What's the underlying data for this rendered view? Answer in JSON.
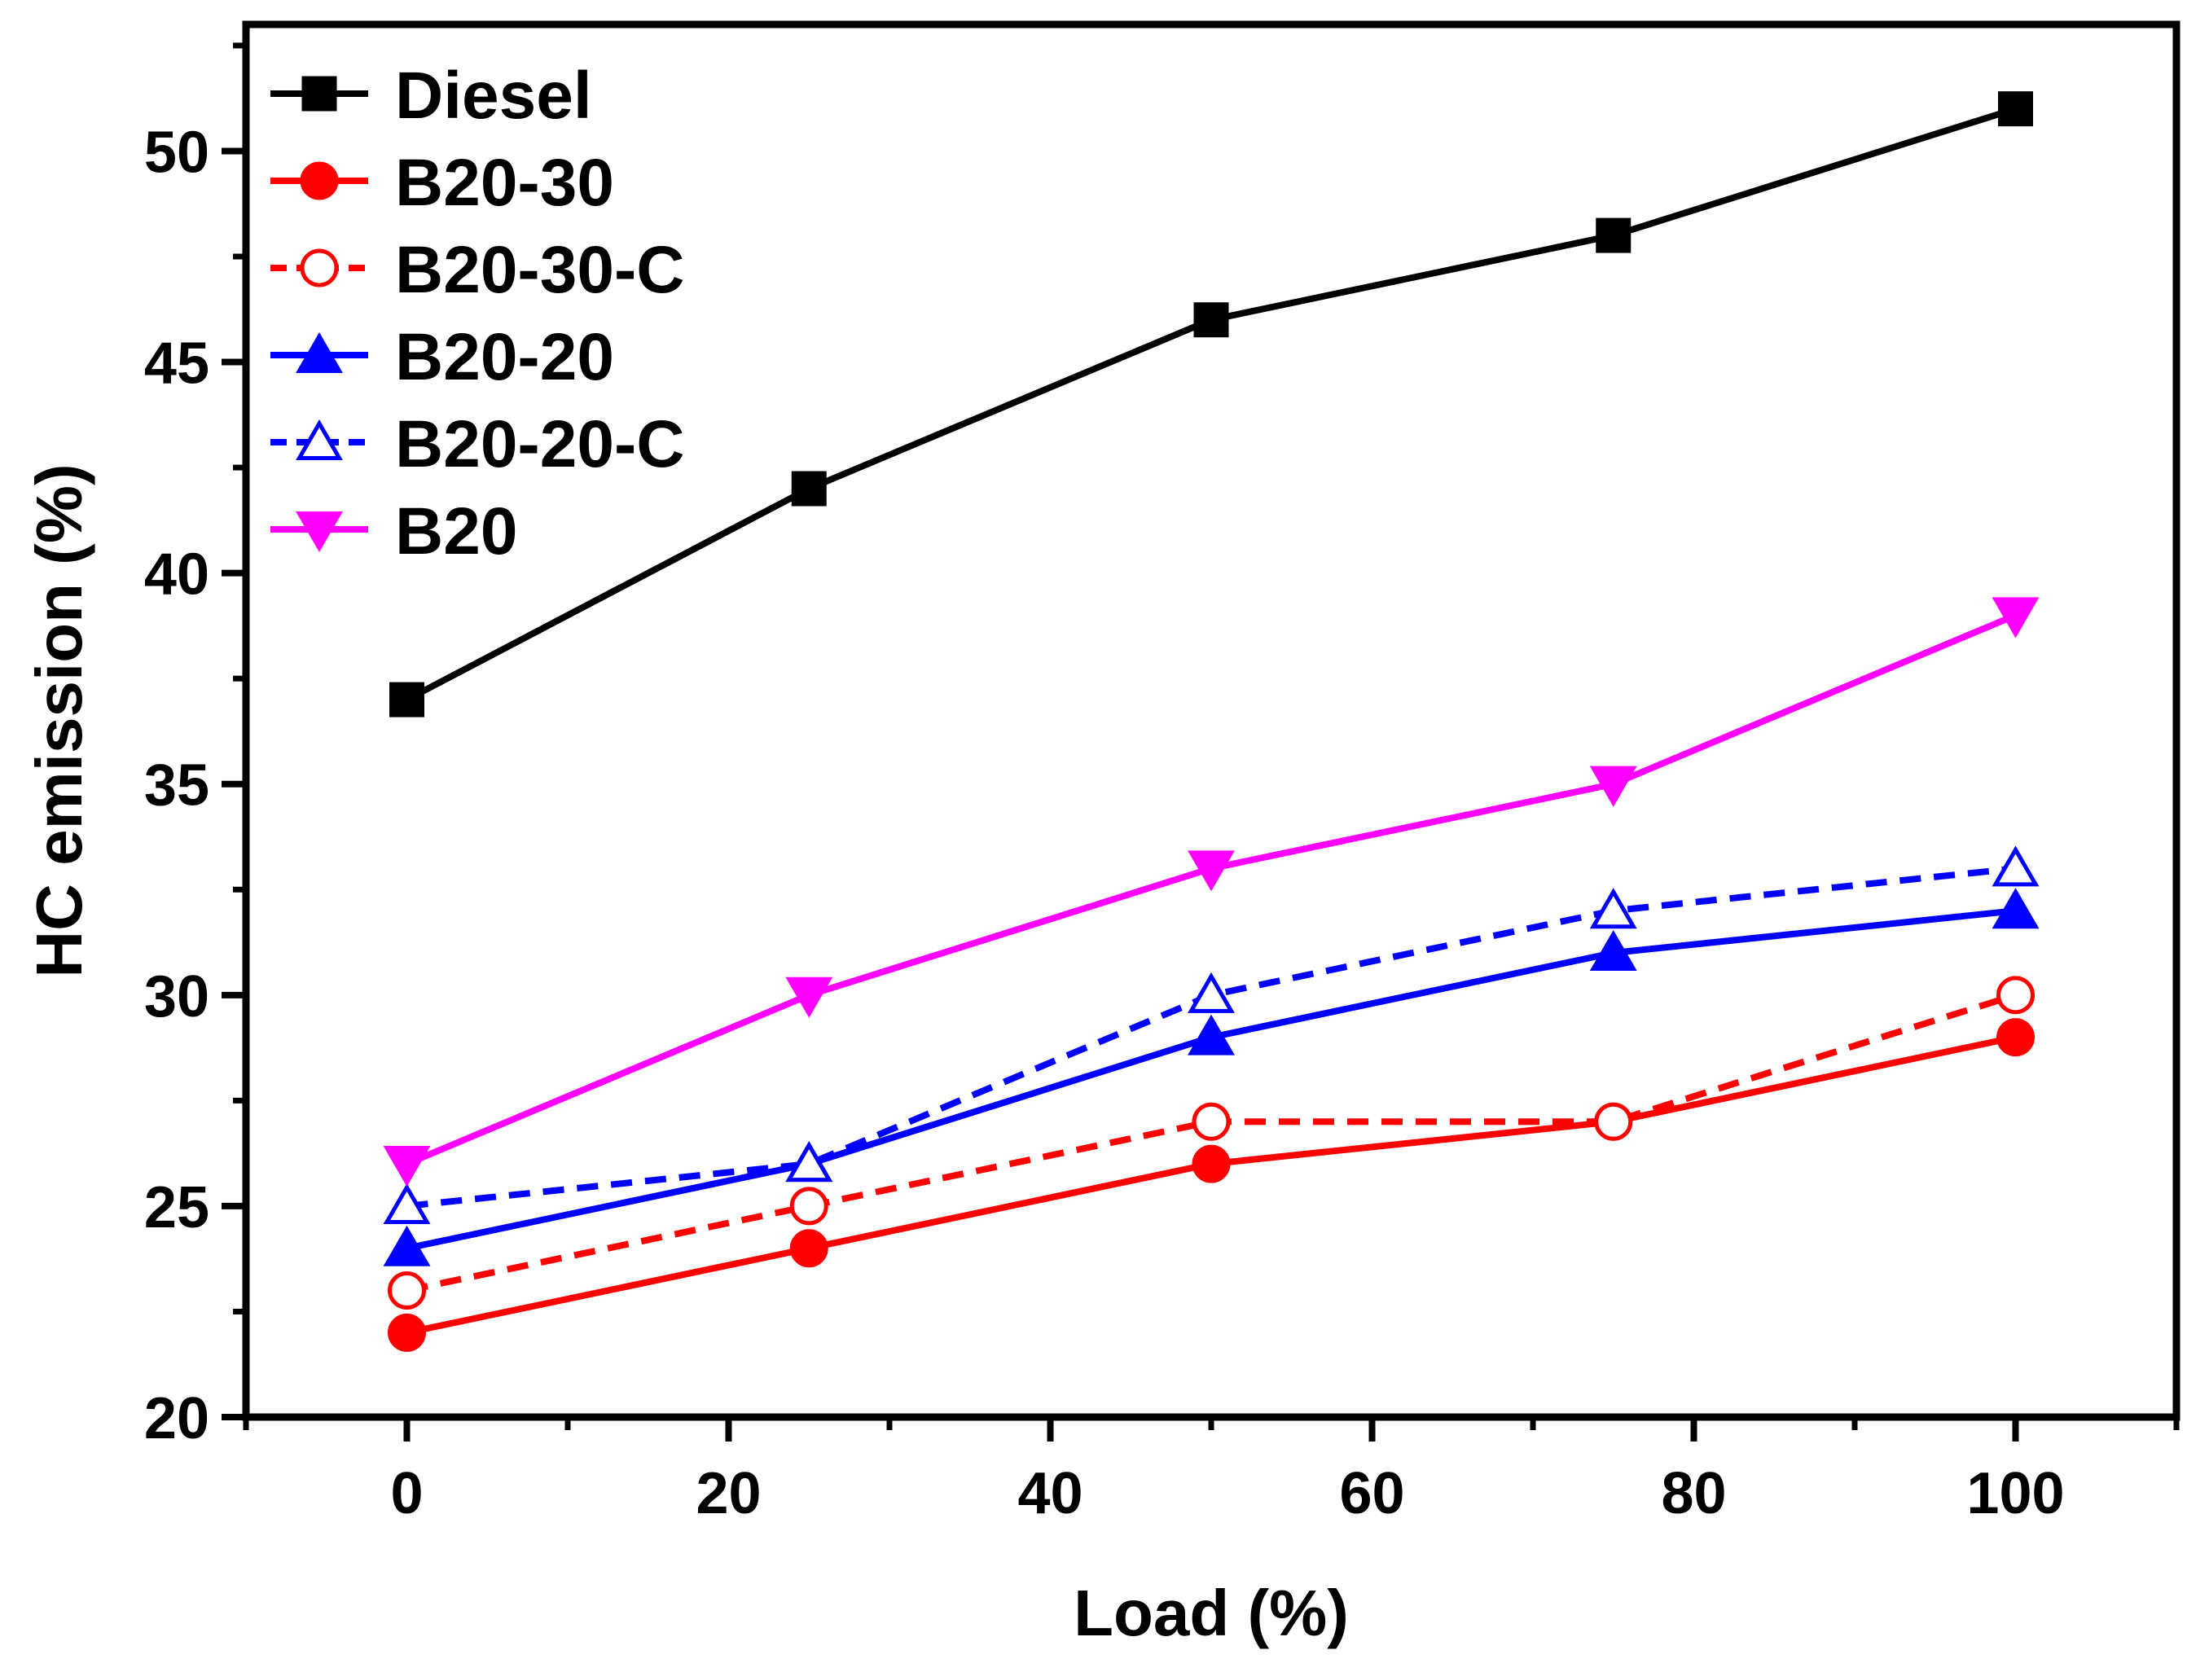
{
  "chart_data": {
    "type": "line",
    "title": "",
    "xlabel": "Load (%)",
    "ylabel": "HC emission (%)",
    "xlim": [
      -10,
      110
    ],
    "ylim": [
      20,
      53
    ],
    "xticks": [
      0,
      20,
      40,
      60,
      80,
      100
    ],
    "yticks": [
      20,
      25,
      30,
      35,
      40,
      45,
      50
    ],
    "grid": false,
    "legend_position": "top-left",
    "x": [
      0,
      25,
      50,
      75,
      100
    ],
    "series": [
      {
        "name": "Diesel",
        "values": [
          37,
          42,
          46,
          48,
          51
        ],
        "color": "#000000",
        "marker": "square",
        "filled": true,
        "dashed": false
      },
      {
        "name": "B20-30",
        "values": [
          22,
          24,
          26,
          27,
          29
        ],
        "color": "#ff0000",
        "marker": "circle",
        "filled": true,
        "dashed": false
      },
      {
        "name": "B20-30-C",
        "values": [
          23,
          25,
          27,
          27,
          30
        ],
        "color": "#ff0000",
        "marker": "circle",
        "filled": false,
        "dashed": true
      },
      {
        "name": "B20-20",
        "values": [
          24,
          26,
          29,
          31,
          32
        ],
        "color": "#0000ff",
        "marker": "triangle-up",
        "filled": true,
        "dashed": false
      },
      {
        "name": "B20-20-C",
        "values": [
          25,
          26,
          30,
          32,
          33
        ],
        "color": "#0000ff",
        "marker": "triangle-up",
        "filled": false,
        "dashed": true
      },
      {
        "name": "B20",
        "values": [
          26,
          30,
          33,
          35,
          39
        ],
        "color": "#ff00ff",
        "marker": "triangle-down",
        "filled": true,
        "dashed": false
      }
    ]
  }
}
